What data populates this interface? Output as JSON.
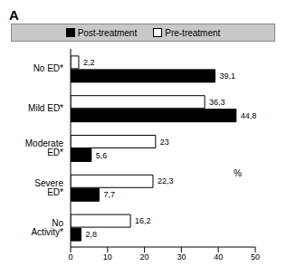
{
  "chart_data": {
    "type": "bar",
    "title": "A",
    "orientation": "horizontal",
    "legend": "top",
    "data_labels": true,
    "grid": false,
    "annotation": "%",
    "categories": [
      "No ED*",
      "Mild ED*",
      "Moderate ED*",
      "Severe ED*",
      "No Activity*"
    ],
    "series": [
      {
        "name": "Post-treatment",
        "color": "#000000",
        "values": [
          39.1,
          44.8,
          5.6,
          7.7,
          2.8
        ],
        "value_labels": [
          "39,1",
          "44,8",
          "5,6",
          "7,7",
          "2,8"
        ]
      },
      {
        "name": "Pre-treatment",
        "color": "#ffffff",
        "values": [
          2.2,
          36.3,
          23,
          22.3,
          16.2
        ],
        "value_labels": [
          "2,2",
          "36,3",
          "23",
          "22,3",
          "16,2"
        ]
      }
    ],
    "xlim": [
      0,
      50
    ],
    "xticks": [
      0,
      10,
      20,
      30,
      40,
      50
    ]
  }
}
